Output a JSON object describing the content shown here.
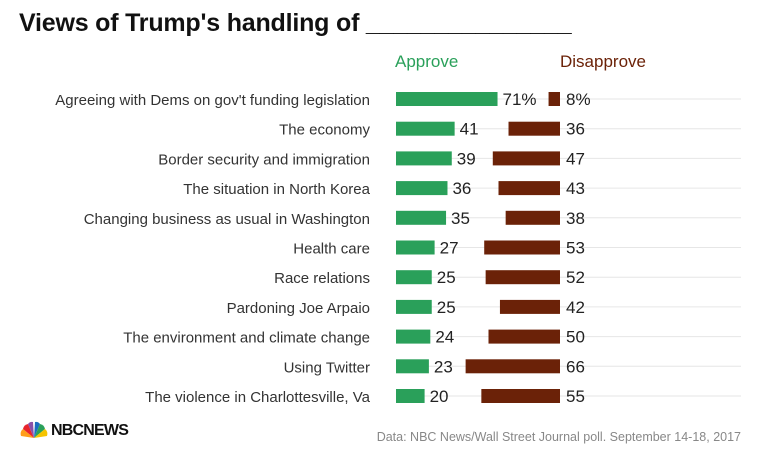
{
  "title": "Views of Trump's handling of _______________",
  "colors": {
    "approve": "#2aa05a",
    "disapprove": "#6b2208",
    "gridline": "#e6e6e6"
  },
  "chart_data": {
    "type": "bar",
    "orientation": "horizontal",
    "categories": [
      "Agreeing with Dems on gov't funding legislation",
      "The economy",
      "Border security and immigration",
      "The situation in North Korea",
      "Changing business as usual in Washington",
      "Health care",
      "Race relations",
      "Pardoning Joe Arpaio",
      "The environment and climate change",
      "Using Twitter",
      "The violence in Charlottesville, Va"
    ],
    "series": [
      {
        "name": "Approve",
        "color": "#2aa05a",
        "values": [
          71,
          41,
          39,
          36,
          35,
          27,
          25,
          25,
          24,
          23,
          20
        ],
        "value_labels": [
          "71%",
          "41",
          "39",
          "36",
          "35",
          "27",
          "25",
          "25",
          "24",
          "23",
          "20"
        ]
      },
      {
        "name": "Disapprove",
        "color": "#6b2208",
        "values": [
          8,
          36,
          47,
          43,
          38,
          53,
          52,
          42,
          50,
          66,
          55
        ],
        "value_labels": [
          "8%",
          "36",
          "47",
          "43",
          "38",
          "53",
          "52",
          "42",
          "50",
          "66",
          "55"
        ]
      }
    ],
    "legend": "column headers above bars",
    "grid": true,
    "unit": "%"
  },
  "source": "Data: NBC News/Wall Street Journal poll. September 14-18, 2017",
  "brand": {
    "logo_text": "NBCNEWS"
  }
}
